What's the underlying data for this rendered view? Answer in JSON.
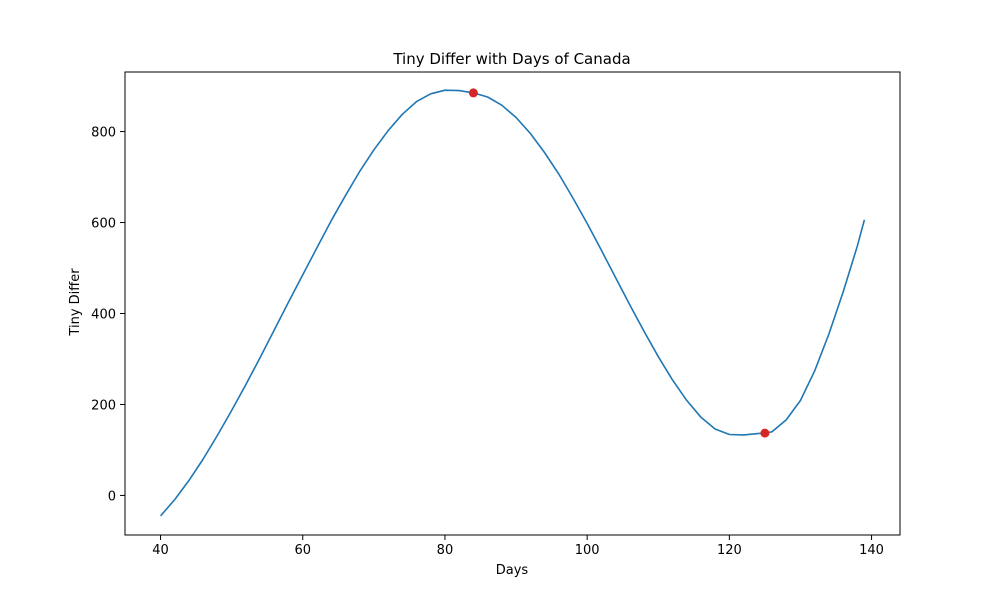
{
  "chart_data": {
    "type": "line",
    "title": "Tiny Differ with Days of Canada",
    "xlabel": "Days",
    "ylabel": "Tiny Differ",
    "xlim": [
      35,
      144
    ],
    "ylim": [
      -87,
      931
    ],
    "xticks": [
      40,
      60,
      80,
      100,
      120,
      140
    ],
    "yticks": [
      0,
      200,
      400,
      600,
      800
    ],
    "grid": false,
    "series": [
      {
        "color": "#1f77b4",
        "x": [
          40,
          42,
          44,
          46,
          48,
          50,
          52,
          54,
          56,
          58,
          60,
          62,
          64,
          66,
          68,
          70,
          72,
          74,
          76,
          78,
          80,
          82,
          84,
          86,
          88,
          90,
          92,
          94,
          96,
          98,
          100,
          102,
          104,
          106,
          108,
          110,
          112,
          114,
          116,
          118,
          120,
          122,
          124,
          125,
          126,
          128,
          130,
          132,
          134,
          136,
          138,
          139
        ],
        "values": [
          -45,
          -9,
          33,
          80,
          132,
          187,
          244,
          303,
          364,
          425,
          485,
          545,
          604,
          659,
          712,
          760,
          802,
          838,
          866,
          883,
          891,
          890,
          885,
          876,
          858,
          831,
          796,
          754,
          707,
          654,
          598,
          539,
          479,
          419,
          361,
          305,
          254,
          209,
          172,
          146,
          134,
          133,
          136,
          137,
          140,
          166,
          209,
          274,
          355,
          447,
          548,
          606
        ]
      }
    ],
    "highlights": {
      "color": "#d62728",
      "x": [
        84,
        125
      ],
      "y": [
        885,
        137
      ]
    }
  }
}
